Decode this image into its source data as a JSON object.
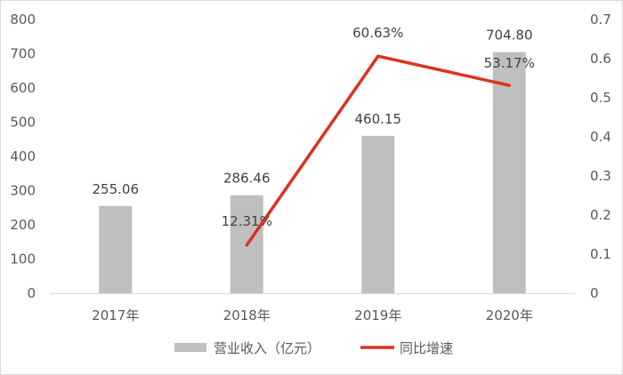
{
  "chart_data": {
    "type": "bar",
    "categories": [
      "2017年",
      "2018年",
      "2019年",
      "2020年"
    ],
    "series": [
      {
        "name": "营业收入（亿元）",
        "type": "bar",
        "axis": "left",
        "values": [
          255.06,
          286.46,
          460.15,
          704.8
        ],
        "labels": [
          "255.06",
          "286.46",
          "460.15",
          "704.80"
        ],
        "color": "#bfbfbf"
      },
      {
        "name": "同比增速",
        "type": "line",
        "axis": "right",
        "values": [
          null,
          0.1231,
          0.6063,
          0.5317
        ],
        "labels": [
          "",
          "12.31%",
          "60.63%",
          "53.17%"
        ],
        "color": "#e0301e"
      }
    ],
    "y_left": {
      "ylim": [
        0,
        800
      ],
      "ticks": [
        "0",
        "100",
        "200",
        "300",
        "400",
        "500",
        "600",
        "700",
        "800"
      ]
    },
    "y_right": {
      "ylim": [
        0,
        0.7
      ],
      "ticks": [
        "0",
        "0.1",
        "0.2",
        "0.3",
        "0.4",
        "0.5",
        "0.6",
        "0.7"
      ]
    },
    "legend_position": "bottom",
    "grid": false
  }
}
